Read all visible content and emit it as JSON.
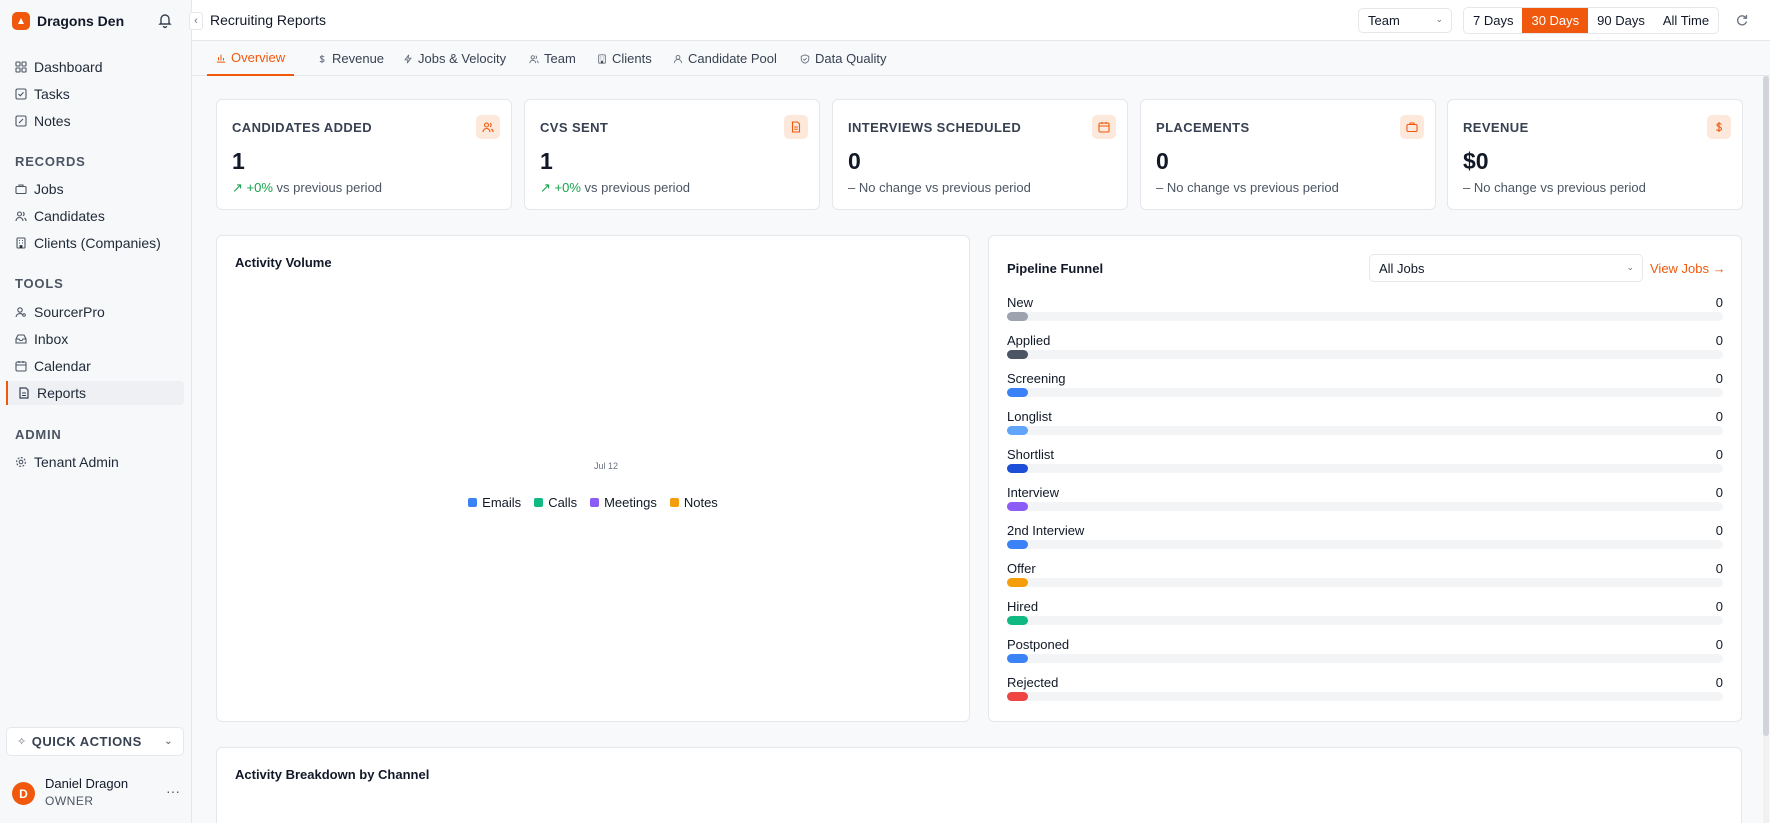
{
  "app": {
    "name": "Dragons Den"
  },
  "sidebar": {
    "main_items": [
      {
        "label": "Dashboard",
        "icon": "dashboard-icon"
      },
      {
        "label": "Tasks",
        "icon": "tasks-icon"
      },
      {
        "label": "Notes",
        "icon": "notes-icon"
      }
    ],
    "records_label": "RECORDS",
    "records_items": [
      {
        "label": "Jobs",
        "icon": "briefcase-icon"
      },
      {
        "label": "Candidates",
        "icon": "users-icon"
      },
      {
        "label": "Clients (Companies)",
        "icon": "building-icon"
      }
    ],
    "tools_label": "TOOLS",
    "tools_items": [
      {
        "label": "SourcerPro",
        "icon": "user-search-icon"
      },
      {
        "label": "Inbox",
        "icon": "inbox-icon"
      },
      {
        "label": "Calendar",
        "icon": "calendar-icon"
      },
      {
        "label": "Reports",
        "icon": "report-icon",
        "active": true
      }
    ],
    "admin_label": "ADMIN",
    "admin_items": [
      {
        "label": "Tenant Admin",
        "icon": "gear-icon"
      }
    ],
    "quick_actions": "QUICK ACTIONS",
    "user": {
      "initial": "D",
      "name": "Daniel Dragon",
      "role": "OWNER"
    }
  },
  "header": {
    "title": "Recruiting Reports",
    "scope": "Team",
    "ranges": [
      "7 Days",
      "30 Days",
      "90 Days",
      "All Time"
    ],
    "active_range": "30 Days"
  },
  "tabs": [
    {
      "label": "Overview",
      "icon": "bar-chart-icon",
      "active": true
    },
    {
      "label": "Revenue",
      "icon": "dollar-icon"
    },
    {
      "label": "Jobs & Velocity",
      "icon": "lightning-icon"
    },
    {
      "label": "Team",
      "icon": "users-icon"
    },
    {
      "label": "Clients",
      "icon": "building-icon"
    },
    {
      "label": "Candidate Pool",
      "icon": "user-icon"
    },
    {
      "label": "Data Quality",
      "icon": "shield-check-icon"
    }
  ],
  "kpis": [
    {
      "title": "CANDIDATES ADDED",
      "value": "1",
      "change": "+0%",
      "change_suffix": "vs previous period",
      "trend": "up",
      "icon": "users-icon"
    },
    {
      "title": "CVS SENT",
      "value": "1",
      "change": "+0%",
      "change_suffix": "vs previous period",
      "trend": "up",
      "icon": "document-icon"
    },
    {
      "title": "INTERVIEWS SCHEDULED",
      "value": "0",
      "change": "No change",
      "change_suffix": "vs previous period",
      "trend": "flat",
      "icon": "calendar-icon"
    },
    {
      "title": "PLACEMENTS",
      "value": "0",
      "change": "No change",
      "change_suffix": "vs previous period",
      "trend": "flat",
      "icon": "briefcase-icon"
    },
    {
      "title": "REVENUE",
      "value": "$0",
      "change": "No change",
      "change_suffix": "vs previous period",
      "trend": "flat",
      "icon": "dollar-icon"
    }
  ],
  "activity_volume": {
    "title": "Activity Volume",
    "x_tick": "Jul 12",
    "legend": [
      {
        "label": "Emails",
        "color": "#3b82f6"
      },
      {
        "label": "Calls",
        "color": "#10b981"
      },
      {
        "label": "Meetings",
        "color": "#8b5cf6"
      },
      {
        "label": "Notes",
        "color": "#f59e0b"
      }
    ]
  },
  "pipeline_funnel": {
    "title": "Pipeline Funnel",
    "filter": "All Jobs",
    "view_link": "View Jobs →",
    "stages": [
      {
        "label": "New",
        "count": "0",
        "color": "#9ca3af"
      },
      {
        "label": "Applied",
        "count": "0",
        "color": "#4b5563"
      },
      {
        "label": "Screening",
        "count": "0",
        "color": "#3b82f6"
      },
      {
        "label": "Longlist",
        "count": "0",
        "color": "#60a5fa"
      },
      {
        "label": "Shortlist",
        "count": "0",
        "color": "#1d4ed8"
      },
      {
        "label": "Interview",
        "count": "0",
        "color": "#8b5cf6"
      },
      {
        "label": "2nd Interview",
        "count": "0",
        "color": "#3b82f6"
      },
      {
        "label": "Offer",
        "count": "0",
        "color": "#f59e0b"
      },
      {
        "label": "Hired",
        "count": "0",
        "color": "#10b981"
      },
      {
        "label": "Postponed",
        "count": "0",
        "color": "#3b82f6"
      },
      {
        "label": "Rejected",
        "count": "0",
        "color": "#ef4444"
      }
    ]
  },
  "activity_breakdown": {
    "title": "Activity Breakdown by Channel"
  },
  "colors": {
    "accent": "#f0590d",
    "positive": "#16a34a"
  }
}
